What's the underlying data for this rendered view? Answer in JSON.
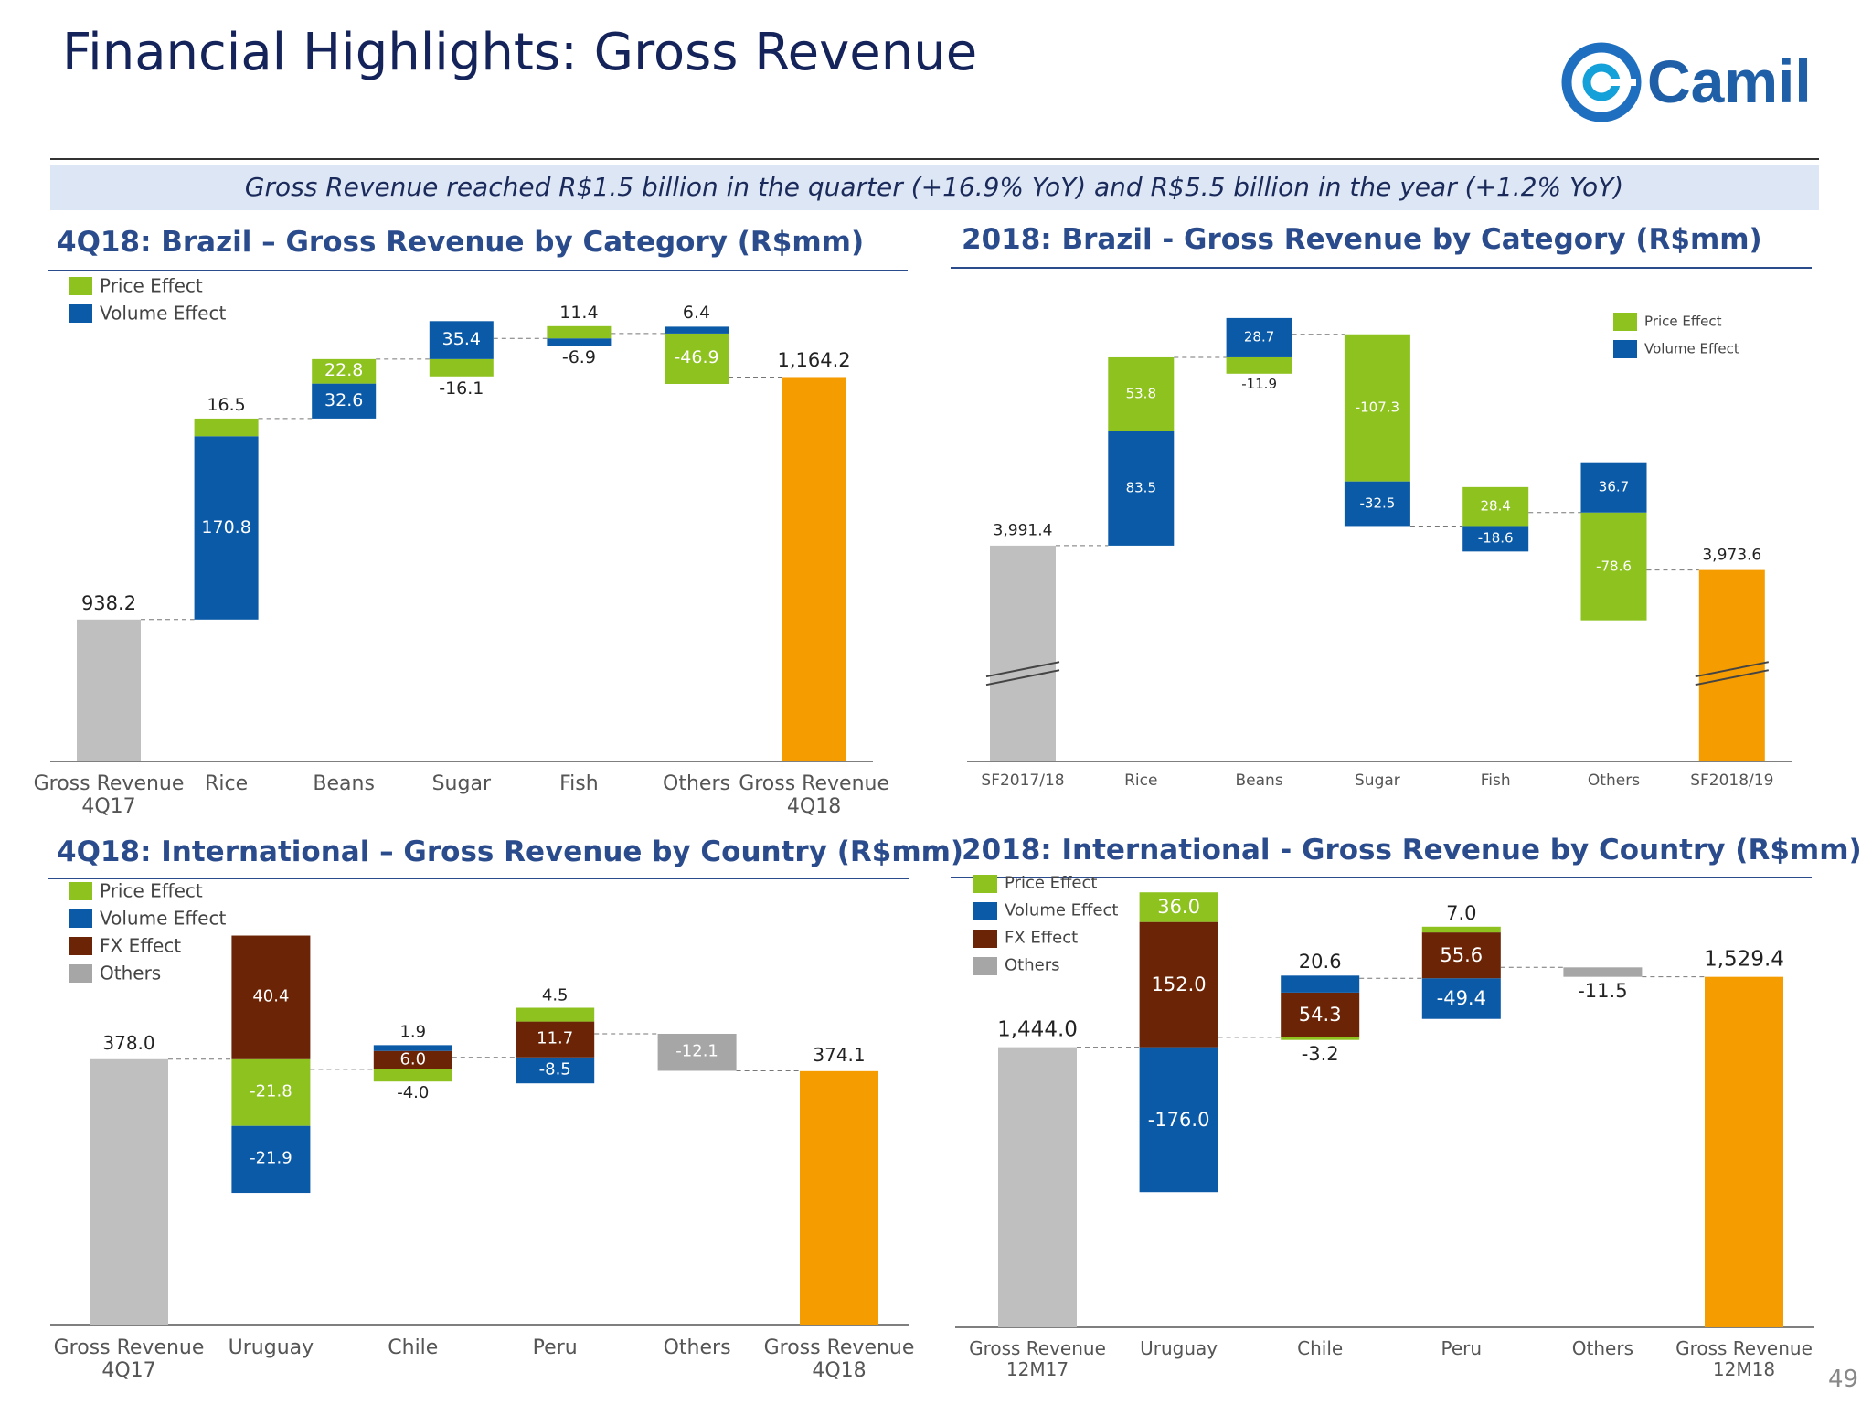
{
  "header": {
    "title": "Financial Highlights: Gross Revenue",
    "logo": "Camil",
    "banner": "Gross Revenue reached R$1.5 billion in the quarter (+16.9% YoY) and R$5.5 billion in the year (+1.2% YoY)"
  },
  "chart_data": [
    {
      "type": "waterfall",
      "title": "4Q18: Brazil – Gross Revenue by Category (R$mm)",
      "categories": [
        "Gross Revenue 4Q17",
        "Rice",
        "Beans",
        "Sugar",
        "Fish",
        "Others",
        "Gross Revenue 4Q18"
      ],
      "totals": {
        "values": [
          938.2,
          null,
          null,
          null,
          null,
          null,
          1164.2
        ],
        "value_labels": [
          "938.2",
          null,
          null,
          null,
          null,
          null,
          "1,164.2"
        ],
        "colors": [
          "#bfbfbf",
          null,
          null,
          null,
          null,
          null,
          "#f59c00"
        ]
      },
      "series": [
        {
          "name": "Price Effect",
          "color": "#8dc21f",
          "values": [
            null,
            16.5,
            22.8,
            -16.1,
            11.4,
            -46.9,
            null
          ]
        },
        {
          "name": "Volume Effect",
          "color": "#0b5aa8",
          "values": [
            null,
            170.8,
            32.6,
            35.4,
            -6.9,
            6.4,
            null
          ]
        }
      ],
      "ylim": [
        806,
        1260
      ],
      "legend": "upper left"
    },
    {
      "type": "waterfall",
      "title": "2018: Brazil - Gross Revenue by Category (R$mm)",
      "categories": [
        "SF2017/18",
        "Rice",
        "Beans",
        "Sugar",
        "Fish",
        "Others",
        "SF2018/19"
      ],
      "totals": {
        "values": [
          3991.4,
          null,
          null,
          null,
          null,
          null,
          3973.6
        ],
        "value_labels": [
          "3,991.4",
          null,
          null,
          null,
          null,
          null,
          "3,973.6"
        ],
        "colors": [
          "#bfbfbf",
          null,
          null,
          null,
          null,
          null,
          "#f59c00"
        ]
      },
      "series": [
        {
          "name": "Price Effect",
          "color": "#8dc21f",
          "values": [
            null,
            53.8,
            -11.9,
            -107.3,
            28.4,
            -78.6,
            null
          ]
        },
        {
          "name": "Volume Effect",
          "color": "#0b5aa8",
          "values": [
            null,
            83.5,
            28.7,
            -32.5,
            -18.6,
            36.7,
            null
          ]
        }
      ],
      "ylim": [
        3834,
        4170
      ],
      "axis_break": true,
      "legend": "upper right"
    },
    {
      "type": "waterfall",
      "title": "4Q18: International – Gross Revenue by Country (R$mm)",
      "categories": [
        "Gross Revenue 4Q17",
        "Uruguay",
        "Chile",
        "Peru",
        "Others",
        "Gross Revenue 4Q18"
      ],
      "totals": {
        "values": [
          378.0,
          null,
          null,
          null,
          null,
          374.1
        ],
        "value_labels": [
          "378.0",
          null,
          null,
          null,
          null,
          "374.1"
        ],
        "colors": [
          "#bfbfbf",
          null,
          null,
          null,
          null,
          "#f59c00"
        ]
      },
      "series": [
        {
          "name": "Price Effect",
          "color": "#8dc21f",
          "values": [
            null,
            -21.8,
            -4.0,
            4.5,
            null,
            null
          ],
          "value_labels": [
            null,
            "-21.8",
            "-4.0",
            "4.5",
            null,
            null
          ]
        },
        {
          "name": "Volume Effect",
          "color": "#0b5aa8",
          "values": [
            null,
            -21.9,
            1.9,
            -8.5,
            null,
            null
          ]
        },
        {
          "name": "FX Effect",
          "color": "#6b2406",
          "values": [
            null,
            40.4,
            6.0,
            11.7,
            null,
            null
          ],
          "value_labels": [
            null,
            "40.4",
            "6.0",
            "11.7",
            null,
            null
          ]
        },
        {
          "name": "Others",
          "color": "#a6a6a6",
          "values": [
            null,
            null,
            null,
            null,
            -12.1,
            null
          ]
        }
      ],
      "ylim": [
        291,
        432
      ],
      "legend": "upper left"
    },
    {
      "type": "waterfall",
      "title": "2018: International - Gross Revenue by Country (R$mm)",
      "categories": [
        "Gross Revenue 12M17",
        "Uruguay",
        "Chile",
        "Peru",
        "Others",
        "Gross Revenue 12M18"
      ],
      "totals": {
        "values": [
          1444.0,
          null,
          null,
          null,
          null,
          1529.4
        ],
        "value_labels": [
          "1,444.0",
          null,
          null,
          null,
          null,
          "1,529.4"
        ],
        "colors": [
          "#bfbfbf",
          null,
          null,
          null,
          null,
          "#f59c00"
        ]
      },
      "series": [
        {
          "name": "Price Effect",
          "color": "#8dc21f",
          "values": [
            null,
            36.0,
            -3.2,
            7.0,
            null,
            null
          ],
          "value_labels": [
            null,
            "36.0",
            "-3.2",
            "7.0",
            null,
            null
          ]
        },
        {
          "name": "Volume Effect",
          "color": "#0b5aa8",
          "values": [
            null,
            -176.0,
            20.6,
            -49.4,
            null,
            null
          ],
          "value_labels": [
            null,
            "-176.0",
            "20.6",
            "-49.4",
            null,
            null
          ]
        },
        {
          "name": "FX Effect",
          "color": "#6b2406",
          "values": [
            null,
            152.0,
            54.3,
            55.6,
            null,
            null
          ],
          "value_labels": [
            null,
            "152.0",
            "54.3",
            "55.6",
            null,
            null
          ]
        },
        {
          "name": "Others",
          "color": "#a6a6a6",
          "values": [
            null,
            null,
            null,
            null,
            -11.5,
            null
          ]
        }
      ],
      "ylim": [
        1104,
        1650
      ],
      "legend": "upper left"
    }
  ],
  "footer": {
    "page": "49"
  }
}
